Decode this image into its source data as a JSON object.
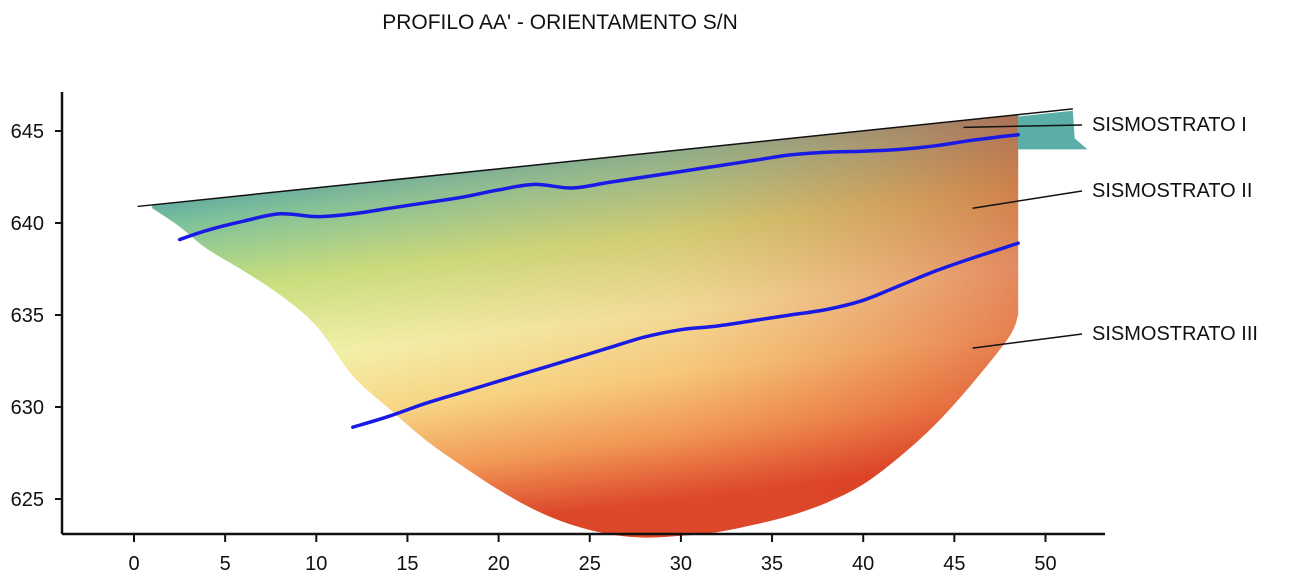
{
  "chart_data": {
    "type": "area",
    "title": "PROFILO AA' - ORIENTAMENTO S/N",
    "xlabel": "",
    "ylabel": "",
    "x_ticks": [
      0,
      5,
      10,
      15,
      20,
      25,
      30,
      35,
      40,
      45,
      50
    ],
    "y_ticks": [
      625,
      630,
      635,
      640,
      645
    ],
    "xlim": [
      -4,
      53
    ],
    "ylim": [
      623,
      647
    ],
    "grid": false,
    "color_scale": [
      "#2a6fa0",
      "#55b0a4",
      "#c7e27e",
      "#f6f7b6",
      "#f9d27f",
      "#ef7a45",
      "#d7331f"
    ],
    "topography": {
      "x": [
        0.2,
        51.5
      ],
      "y": [
        640.9,
        646.2
      ]
    },
    "section_outline": {
      "x": [
        1,
        2.5,
        4,
        6,
        8,
        10,
        12,
        14,
        16,
        18,
        20,
        22,
        24,
        26,
        28,
        30,
        32,
        34,
        36,
        38,
        40,
        42,
        44,
        46,
        48,
        48.5
      ],
      "y": [
        640.8,
        639.8,
        638.6,
        637.4,
        636.1,
        634.4,
        631.7,
        629.9,
        628.2,
        626.8,
        625.5,
        624.4,
        623.6,
        623.1,
        622.9,
        623.0,
        623.2,
        623.6,
        624.1,
        624.8,
        625.8,
        627.3,
        629.1,
        631.3,
        633.8,
        635.0
      ]
    },
    "series": [
      {
        "name": "",
        "x": [
          2.5,
          4,
          6,
          8,
          10,
          12,
          14,
          16,
          18,
          20,
          22,
          24,
          26,
          28,
          30,
          32,
          34,
          36,
          38,
          40,
          42,
          44,
          46,
          48.5
        ],
        "y": [
          639.1,
          639.6,
          640.1,
          640.5,
          640.35,
          640.5,
          640.8,
          641.1,
          641.4,
          641.8,
          642.1,
          641.9,
          642.2,
          642.5,
          642.8,
          643.1,
          643.4,
          643.7,
          643.85,
          643.9,
          644.0,
          644.2,
          644.5,
          644.8
        ]
      },
      {
        "name": "",
        "x": [
          12,
          14,
          16,
          18,
          20,
          22,
          24,
          26,
          28,
          30,
          32,
          34,
          36,
          38,
          40,
          42,
          44,
          46,
          48.5
        ],
        "y": [
          628.9,
          629.5,
          630.2,
          630.8,
          631.4,
          632.0,
          632.6,
          633.2,
          633.8,
          634.2,
          634.4,
          634.7,
          635.0,
          635.3,
          635.8,
          636.6,
          637.4,
          638.1,
          638.9
        ]
      }
    ],
    "layers": [
      {
        "label": "SISMOSTRATO I",
        "pointer_x": 45.5,
        "pointer_y": 645.2
      },
      {
        "label": "SISMOSTRATO II",
        "pointer_x": 46,
        "pointer_y": 640.8
      },
      {
        "label": "SISMOSTRATO III",
        "pointer_x": 46,
        "pointer_y": 633.2
      }
    ]
  }
}
